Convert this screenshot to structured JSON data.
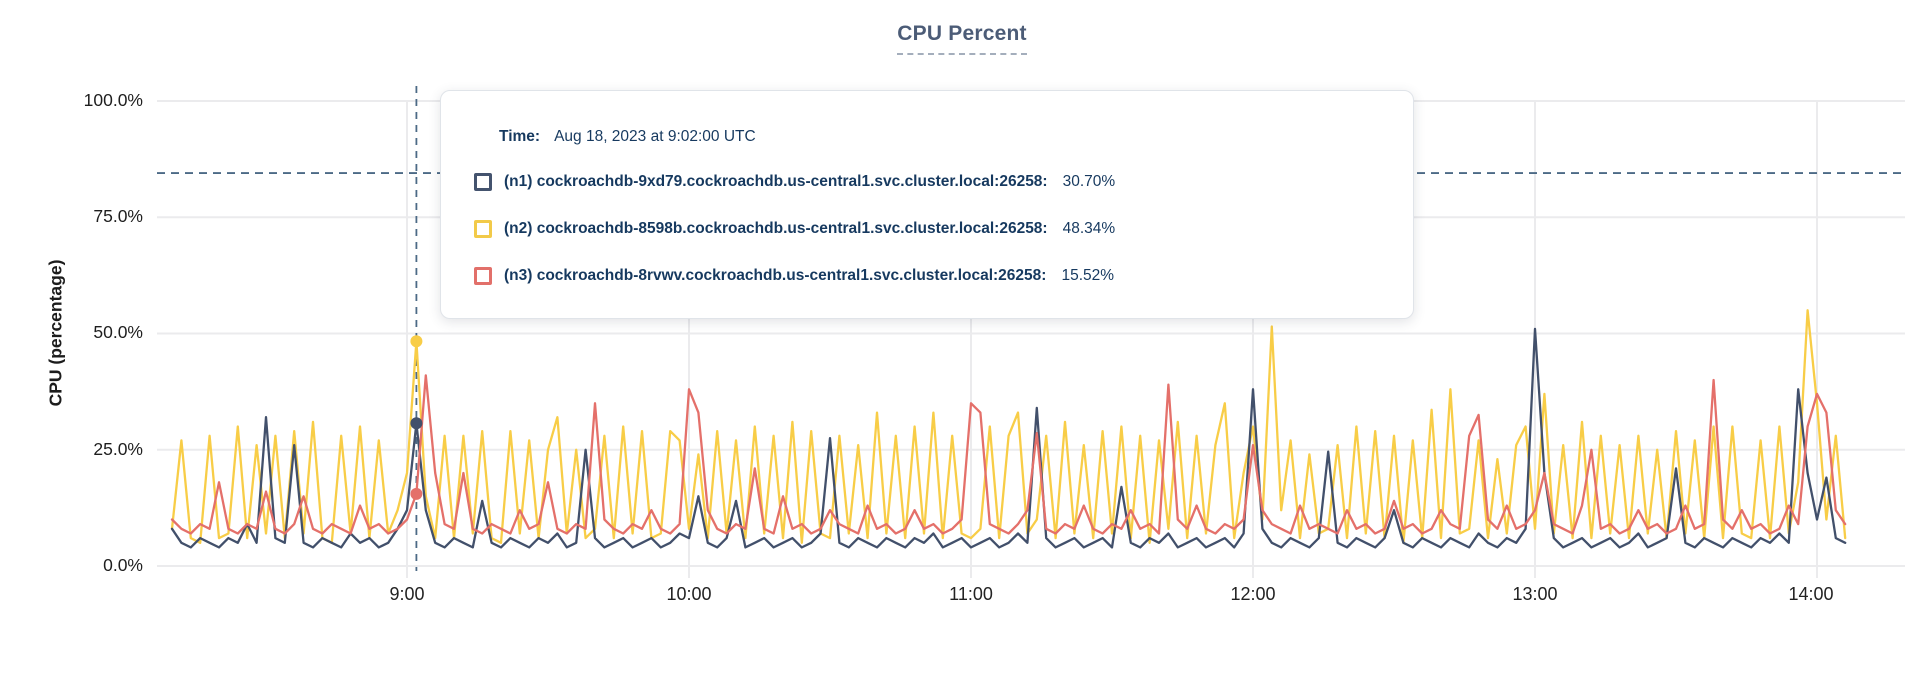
{
  "title": "CPU Percent",
  "y_axis": {
    "title": "CPU (percentage)",
    "tick_labels": [
      "100.0%",
      "75.0%",
      "50.0%",
      "25.0%",
      "0.0%"
    ]
  },
  "x_axis": {
    "tick_labels": [
      "9:00",
      "10:00",
      "11:00",
      "12:00",
      "13:00",
      "14:00"
    ]
  },
  "tooltip": {
    "time_label": "Time:",
    "time_value": "Aug 18, 2023 at 9:02:00 UTC",
    "rows": [
      {
        "label": "(n1) cockroachdb-9xd79.cockroachdb.us-central1.svc.cluster.local:26258:",
        "value": "30.70%",
        "color": "#44536e"
      },
      {
        "label": "(n2) cockroachdb-8598b.cockroachdb.us-central1.svc.cluster.local:26258:",
        "value": "48.34%",
        "color": "#f2ca49"
      },
      {
        "label": "(n3) cockroachdb-8rvwv.cockroachdb.us-central1.svc.cluster.local:26258:",
        "value": "15.52%",
        "color": "#e2706a"
      }
    ]
  },
  "chart_data": {
    "type": "line",
    "title": "CPU Percent",
    "ylabel": "CPU (percentage)",
    "ylim": [
      0,
      100
    ],
    "grid": true,
    "x_tick_labels": [
      "9:00",
      "10:00",
      "11:00",
      "12:00",
      "13:00",
      "14:00"
    ],
    "x_tick_minutes": [
      540,
      600,
      660,
      720,
      780,
      840
    ],
    "x_start_minute": 490,
    "x_step_minutes": 2,
    "annotations": {
      "h_dashed_value_pct": 84.5,
      "v_dashed_minute": 542,
      "hover_index": 26,
      "hover_time": "Aug 18, 2023 at 9:02:00 UTC"
    },
    "series": [
      {
        "name": "(n1) cockroachdb-9xd79.cockroachdb.us-central1.svc.cluster.local:26258",
        "color": "#42506b",
        "hover_value": 30.7,
        "values": [
          8,
          5,
          4,
          6,
          5,
          4,
          6,
          5,
          9,
          5,
          32,
          6,
          5,
          26,
          5,
          4,
          6,
          5,
          4,
          7,
          5,
          6,
          4,
          5,
          8,
          12,
          30.7,
          12,
          5,
          4,
          6,
          5,
          4,
          14,
          5,
          4,
          6,
          5,
          4,
          6,
          5,
          7,
          4,
          5,
          25,
          6,
          4,
          5,
          6,
          4,
          5,
          6,
          4,
          5,
          7,
          6,
          15,
          5,
          4,
          6,
          14,
          4,
          5,
          6,
          4,
          5,
          6,
          4,
          5,
          7,
          27.5,
          5,
          4,
          6,
          5,
          4,
          6,
          5,
          4,
          6,
          5,
          7,
          4,
          5,
          6,
          4,
          5,
          6,
          4,
          5,
          7,
          5,
          34,
          6,
          4,
          5,
          6,
          4,
          5,
          6,
          4,
          17,
          5,
          4,
          6,
          5,
          7,
          4,
          5,
          6,
          4,
          5,
          6,
          4,
          7,
          38,
          8,
          5,
          4,
          6,
          5,
          4,
          6,
          24.6,
          5,
          4,
          6,
          5,
          4,
          6,
          12,
          5,
          4,
          6,
          5,
          4,
          6,
          5,
          4,
          7,
          5,
          4,
          6,
          5,
          8,
          51,
          20,
          6,
          4,
          5,
          6,
          4,
          5,
          6,
          4,
          5,
          7,
          4,
          5,
          6,
          21,
          5,
          4,
          6,
          5,
          4,
          6,
          5,
          4,
          6,
          5,
          7,
          5,
          38,
          20,
          10,
          19,
          6,
          5
        ]
      },
      {
        "name": "(n2) cockroachdb-8598b.cockroachdb.us-central1.svc.cluster.local:26258",
        "color": "#f8cd47",
        "hover_value": 48.34,
        "values": [
          8,
          27,
          6,
          5,
          28,
          6,
          7,
          30,
          6,
          26,
          7,
          28,
          6,
          29,
          7,
          31,
          6,
          5,
          28,
          7,
          30,
          6,
          27,
          7,
          12,
          20,
          48.34,
          15,
          6,
          28,
          6,
          28,
          7,
          29,
          6,
          5,
          29,
          7,
          27,
          6,
          25,
          32,
          7,
          25,
          6,
          8,
          28,
          6,
          30,
          7,
          29,
          6,
          7,
          29,
          27,
          8,
          24,
          6,
          29,
          7,
          27,
          6,
          30,
          7,
          28,
          6,
          31,
          5,
          29,
          7,
          6,
          28,
          7,
          26,
          6,
          33,
          7,
          28,
          6,
          30,
          7,
          33,
          6,
          28,
          7,
          6,
          8,
          30,
          6,
          28,
          33,
          7,
          10,
          28,
          6,
          31,
          7,
          26,
          6,
          29,
          7,
          30,
          6,
          28,
          5,
          27,
          8,
          31,
          6,
          28,
          7,
          26,
          35,
          6,
          20,
          30,
          10,
          51.5,
          12,
          27,
          6,
          24,
          7,
          8,
          26,
          6,
          30,
          7,
          29,
          6,
          28,
          5,
          27,
          6,
          33.6,
          6,
          38,
          7,
          8,
          27,
          6,
          23,
          7,
          26,
          30,
          8,
          37,
          7,
          26,
          6,
          31,
          6,
          28,
          7,
          26,
          6,
          28,
          7,
          25,
          6,
          29,
          7,
          27,
          6,
          30,
          6,
          30,
          7,
          6,
          27,
          6,
          30,
          7,
          18,
          55,
          35,
          10,
          28,
          6
        ]
      },
      {
        "name": "(n3) cockroachdb-8rvwv.cockroachdb.us-central1.svc.cluster.local:26258",
        "color": "#e4706a",
        "hover_value": 15.52,
        "values": [
          10,
          8,
          7,
          9,
          8,
          18,
          8,
          7,
          9,
          8,
          16,
          8,
          7,
          9,
          15,
          8,
          7,
          9,
          8,
          7,
          13,
          8,
          9,
          7,
          8,
          10,
          15.52,
          41,
          20,
          9,
          8,
          20,
          8,
          7,
          9,
          8,
          7,
          12,
          8,
          9,
          18,
          8,
          7,
          9,
          8,
          35,
          10,
          8,
          7,
          9,
          8,
          12,
          8,
          7,
          9,
          38,
          33,
          12,
          8,
          7,
          9,
          8,
          21,
          8,
          7,
          15,
          8,
          9,
          7,
          8,
          12,
          9,
          8,
          7,
          13,
          8,
          9,
          7,
          8,
          12,
          8,
          9,
          7,
          8,
          10,
          35,
          33,
          9,
          8,
          7,
          9,
          12,
          28.6,
          8,
          7,
          9,
          8,
          13,
          8,
          7,
          9,
          8,
          12,
          8,
          9,
          7,
          39,
          10,
          8,
          13,
          8,
          7,
          9,
          8,
          10,
          26,
          12,
          9,
          8,
          7,
          13,
          8,
          9,
          8,
          7,
          12,
          8,
          9,
          7,
          8,
          14,
          8,
          9,
          7,
          8,
          12,
          9,
          8,
          28,
          32.5,
          10,
          8,
          13,
          8,
          9,
          12,
          20,
          9,
          8,
          7,
          13,
          25,
          8,
          9,
          7,
          8,
          12,
          8,
          9,
          7,
          8,
          13,
          8,
          9,
          40,
          10,
          8,
          12,
          8,
          9,
          7,
          8,
          13,
          9,
          30,
          37,
          33,
          12,
          9
        ]
      }
    ]
  }
}
